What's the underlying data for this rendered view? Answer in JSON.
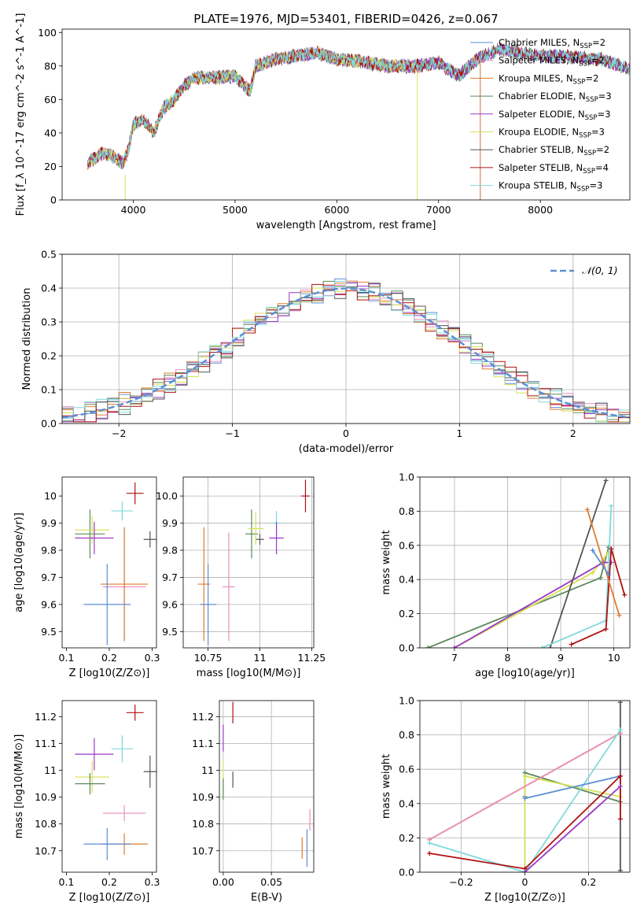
{
  "figure": {
    "title": "PLATE=1976, MJD=53401, FIBERID=0426, z=0.067"
  },
  "colors": {
    "Chabrier MILES": "#5b8fd6",
    "Salpeter MILES": "#e88fbf",
    "Kroupa MILES": "#e07b2e",
    "Chabrier ELODIE": "#5b8a5b",
    "Salpeter ELODIE": "#9b38c7",
    "Kroupa ELODIE": "#d6e055",
    "Chabrier STELIB": "#555555",
    "Salpeter STELIB": "#b01010",
    "Kroupa STELIB": "#7fd9dc"
  },
  "chart_data": [
    {
      "id": "spectrum",
      "type": "line",
      "xlabel": "wavelength [Angstrom, rest frame]",
      "ylabel": "Flux [f_λ 10^-17 erg cm^-2 s^-1 A^-1]",
      "xlim": [
        3300,
        8880
      ],
      "ylim": [
        0,
        102
      ],
      "xticks": [
        4000,
        5000,
        6000,
        7000,
        8000
      ],
      "yticks": [
        0,
        20,
        40,
        60,
        80,
        100
      ],
      "grid": false,
      "legend_position": "top-right",
      "legend": [
        "Chabrier MILES, N_SSP=2",
        "Salpeter MILES, N_SSP=2",
        "Kroupa MILES, N_SSP=2",
        "Chabrier ELODIE, N_SSP=3",
        "Salpeter ELODIE, N_SSP=3",
        "Kroupa ELODIE, N_SSP=3",
        "Chabrier STELIB, N_SSP=2",
        "Salpeter STELIB, N_SSP=4",
        "Kroupa STELIB, N_SSP=3"
      ],
      "continuum": {
        "x": [
          3550,
          3700,
          3800,
          3900,
          3950,
          4000,
          4100,
          4200,
          4300,
          4400,
          4500,
          4600,
          4800,
          5000,
          5150,
          5200,
          5400,
          5600,
          5800,
          5900,
          6000,
          6200,
          6500,
          6800,
          7000,
          7200,
          7400,
          7600,
          7800,
          8000,
          8200,
          8400,
          8600,
          8880
        ],
        "y": [
          22,
          28,
          26,
          22,
          30,
          45,
          48,
          40,
          55,
          60,
          68,
          73,
          73,
          74,
          65,
          80,
          84,
          86,
          88,
          86,
          84,
          83,
          80,
          80,
          82,
          74,
          85,
          90,
          88,
          86,
          86,
          85,
          84,
          78
        ]
      },
      "series_cutoffs": {
        "Kroupa ELODIE": 6790,
        "Kroupa MILES": 7410,
        "Salpeter MILES": 7410,
        "Chabrier MILES": 7410
      }
    },
    {
      "id": "residuals",
      "type": "histogram",
      "xlabel": "(data-model)/error",
      "ylabel": "Normed distribution",
      "xlim": [
        -2.5,
        2.5
      ],
      "ylim": [
        0,
        0.5
      ],
      "xticks": [
        -2,
        -1,
        0,
        1,
        2
      ],
      "yticks": [
        0.0,
        0.1,
        0.2,
        0.3,
        0.4,
        0.5
      ],
      "grid": true,
      "legend_position": "top-right",
      "legend": [
        "N(0,1)"
      ],
      "bins": {
        "start": -2.5,
        "width": 0.1,
        "count": 50
      }
    },
    {
      "id": "age_vs_Z",
      "type": "errorbar",
      "xlabel": "Z [log10(Z/Z⊙)]",
      "ylabel": "age [log10(age/yr)]",
      "xlim": [
        0.09,
        0.31
      ],
      "ylim": [
        9.44,
        10.07
      ],
      "xticks": [
        0.1,
        0.2,
        0.3
      ],
      "yticks": [
        9.5,
        9.6,
        9.7,
        9.8,
        9.9,
        10.0
      ],
      "grid": false,
      "points": [
        {
          "s": "Salpeter STELIB",
          "x": 0.26,
          "y": 10.01,
          "xe": 0.02,
          "ye": 0.04
        },
        {
          "s": "Kroupa STELIB",
          "x": 0.23,
          "y": 9.945,
          "xe": 0.025,
          "ye": 0.035
        },
        {
          "s": "Chabrier STELIB",
          "x": 0.295,
          "y": 9.84,
          "xe": 0.015,
          "ye": 0.03
        },
        {
          "s": "Chabrier ELODIE",
          "x": 0.155,
          "y": 9.86,
          "xe": 0.035,
          "ye": 0.09
        },
        {
          "s": "Kroupa ELODIE",
          "x": 0.16,
          "y": 9.875,
          "xe": 0.04,
          "ye": 0.05
        },
        {
          "s": "Salpeter ELODIE",
          "x": 0.165,
          "y": 9.845,
          "xe": 0.045,
          "ye": 0.06
        },
        {
          "s": "Salpeter MILES",
          "x": 0.235,
          "y": 9.665,
          "xe": 0.05,
          "ye": 0.2
        },
        {
          "s": "Kroupa MILES",
          "x": 0.235,
          "y": 9.675,
          "xe": 0.055,
          "ye": 0.21
        },
        {
          "s": "Chabrier MILES",
          "x": 0.195,
          "y": 9.6,
          "xe": 0.055,
          "ye": 0.15
        }
      ]
    },
    {
      "id": "age_vs_mass",
      "type": "errorbar",
      "xlabel": "mass [log10(M/M⊙)]",
      "ylabel": "",
      "xlim": [
        10.63,
        11.26
      ],
      "ylim": [
        9.44,
        10.07
      ],
      "xticks": [
        10.75,
        11.0,
        11.25
      ],
      "ytick_labels": [
        "9.5",
        "9.6",
        "9.7",
        "9.8",
        "9.9",
        "10.0"
      ],
      "yticks": [
        9.5,
        9.6,
        9.7,
        9.8,
        9.9,
        10.0
      ],
      "grid": true,
      "points": [
        {
          "s": "Salpeter STELIB",
          "x": 11.22,
          "y": 10.0,
          "xe": 0.02,
          "ye": 0.06
        },
        {
          "s": "Kroupa STELIB",
          "x": 11.08,
          "y": 9.9,
          "xe": 0.03,
          "ye": 0.045
        },
        {
          "s": "Chabrier STELIB",
          "x": 11.0,
          "y": 9.84,
          "xe": 0.02,
          "ye": 0.02
        },
        {
          "s": "Chabrier ELODIE",
          "x": 10.96,
          "y": 9.86,
          "xe": 0.03,
          "ye": 0.09
        },
        {
          "s": "Kroupa ELODIE",
          "x": 10.98,
          "y": 9.88,
          "xe": 0.04,
          "ye": 0.06
        },
        {
          "s": "Salpeter ELODIE",
          "x": 11.08,
          "y": 9.845,
          "xe": 0.035,
          "ye": 0.06
        },
        {
          "s": "Salpeter MILES",
          "x": 10.85,
          "y": 9.665,
          "xe": 0.03,
          "ye": 0.2
        },
        {
          "s": "Kroupa MILES",
          "x": 10.73,
          "y": 9.675,
          "xe": 0.03,
          "ye": 0.21
        },
        {
          "s": "Chabrier MILES",
          "x": 10.75,
          "y": 9.6,
          "xe": 0.04,
          "ye": 0.15
        }
      ]
    },
    {
      "id": "weight_vs_age",
      "type": "line",
      "xlabel": "age [log10(age/yr)]",
      "ylabel": "mass weight",
      "xlim": [
        6.35,
        10.3
      ],
      "ylim": [
        0,
        1
      ],
      "xticks": [
        7,
        8,
        9,
        10
      ],
      "yticks": [
        0.0,
        0.2,
        0.4,
        0.6,
        0.8,
        1.0
      ],
      "grid": true,
      "series": [
        {
          "s": "Chabrier ELODIE",
          "points": [
            [
              6.5,
              0.0
            ],
            [
              9.75,
              0.41
            ],
            [
              9.9,
              0.59
            ]
          ]
        },
        {
          "s": "Kroupa ELODIE",
          "points": [
            [
              7.0,
              0.0
            ],
            [
              9.6,
              0.44
            ],
            [
              9.9,
              0.56
            ]
          ]
        },
        {
          "s": "Salpeter ELODIE",
          "points": [
            [
              7.0,
              0.0
            ],
            [
              9.8,
              0.5
            ],
            [
              9.95,
              0.5
            ]
          ]
        },
        {
          "s": "Chabrier STELIB",
          "points": [
            [
              8.8,
              0.0
            ],
            [
              9.85,
              0.98
            ]
          ]
        },
        {
          "s": "Kroupa STELIB",
          "points": [
            [
              8.65,
              0.0
            ],
            [
              9.85,
              0.16
            ],
            [
              9.95,
              0.83
            ]
          ]
        },
        {
          "s": "Salpeter STELIB",
          "points": [
            [
              9.2,
              0.02
            ],
            [
              9.85,
              0.11
            ],
            [
              9.95,
              0.58
            ],
            [
              10.2,
              0.31
            ]
          ]
        },
        {
          "s": "Kroupa MILES",
          "points": [
            [
              9.5,
              0.81
            ],
            [
              10.1,
              0.19
            ]
          ]
        },
        {
          "s": "Chabrier MILES",
          "points": [
            [
              9.6,
              0.57
            ],
            [
              9.9,
              0.43
            ]
          ]
        }
      ]
    },
    {
      "id": "mass_vs_Z",
      "type": "errorbar",
      "xlabel": "Z [log10(Z/Z⊙)]",
      "ylabel": "mass [log10(M/M⊙)]",
      "xlim": [
        0.09,
        0.31
      ],
      "ylim": [
        10.62,
        11.26
      ],
      "xticks": [
        0.1,
        0.2,
        0.3
      ],
      "yticks": [
        10.7,
        10.8,
        10.9,
        11.0,
        11.1,
        11.2
      ],
      "grid": false,
      "points": [
        {
          "s": "Salpeter STELIB",
          "x": 0.26,
          "y": 11.215,
          "xe": 0.02,
          "ye": 0.03
        },
        {
          "s": "Kroupa STELIB",
          "x": 0.23,
          "y": 11.08,
          "xe": 0.025,
          "ye": 0.05
        },
        {
          "s": "Salpeter ELODIE",
          "x": 0.165,
          "y": 11.06,
          "xe": 0.045,
          "ye": 0.06
        },
        {
          "s": "Chabrier STELIB",
          "x": 0.295,
          "y": 10.995,
          "xe": 0.015,
          "ye": 0.06
        },
        {
          "s": "Kroupa ELODIE",
          "x": 0.16,
          "y": 10.975,
          "xe": 0.04,
          "ye": 0.06
        },
        {
          "s": "Chabrier ELODIE",
          "x": 0.155,
          "y": 10.95,
          "xe": 0.035,
          "ye": 0.04
        },
        {
          "s": "Salpeter MILES",
          "x": 0.235,
          "y": 10.84,
          "xe": 0.05,
          "ye": 0.03
        },
        {
          "s": "Kroupa MILES",
          "x": 0.235,
          "y": 10.725,
          "xe": 0.055,
          "ye": 0.04
        },
        {
          "s": "Chabrier MILES",
          "x": 0.195,
          "y": 10.725,
          "xe": 0.055,
          "ye": 0.06
        }
      ]
    },
    {
      "id": "mass_vs_ebv",
      "type": "errorbar",
      "xlabel": "E(B-V)",
      "ylabel": "",
      "xlim": [
        -0.004,
        0.094
      ],
      "ylim": [
        10.62,
        11.26
      ],
      "xticks": [
        0.0,
        0.05
      ],
      "xtick_labels": [
        "0.00",
        "0.05"
      ],
      "yticks": [
        10.7,
        10.8,
        10.9,
        11.0,
        11.1,
        11.2
      ],
      "grid": true,
      "points": [
        {
          "s": "Salpeter STELIB",
          "x": 0.01,
          "y": 11.215,
          "xe": 0,
          "ye": 0.04
        },
        {
          "s": "Salpeter ELODIE",
          "x": 0.0,
          "y": 11.12,
          "xe": 0,
          "ye": 0.05
        },
        {
          "s": "Kroupa ELODIE",
          "x": 0.0,
          "y": 10.98,
          "xe": 0,
          "ye": 0.06
        },
        {
          "s": "Chabrier STELIB",
          "x": 0.01,
          "y": 10.965,
          "xe": 0,
          "ye": 0.03
        },
        {
          "s": "Chabrier ELODIE",
          "x": 0.0,
          "y": 10.93,
          "xe": 0,
          "ye": 0.04
        },
        {
          "s": "Salpeter MILES",
          "x": 0.09,
          "y": 10.815,
          "xe": 0,
          "ye": 0.04
        },
        {
          "s": "Chabrier MILES",
          "x": 0.087,
          "y": 10.71,
          "xe": 0,
          "ye": 0.07
        },
        {
          "s": "Kroupa MILES",
          "x": 0.082,
          "y": 10.71,
          "xe": 0,
          "ye": 0.04
        }
      ]
    },
    {
      "id": "weight_vs_Z",
      "type": "line",
      "xlabel": "Z [log10(Z/Z⊙)]",
      "ylabel": "mass weight",
      "xlim": [
        -0.33,
        0.33
      ],
      "ylim": [
        0,
        1
      ],
      "xticks": [
        -0.2,
        0.0,
        0.2
      ],
      "yticks": [
        0.0,
        0.2,
        0.4,
        0.6,
        0.8,
        1.0
      ],
      "grid": true,
      "series": [
        {
          "s": "Chabrier STELIB",
          "points": [
            [
              0.3,
              0.01
            ],
            [
              0.3,
              0.99
            ]
          ]
        },
        {
          "s": "Chabrier ELODIE",
          "points": [
            [
              0.0,
              0.44
            ],
            [
              0.0,
              0.58
            ],
            [
              0.3,
              0.41
            ]
          ]
        },
        {
          "s": "Kroupa ELODIE",
          "points": [
            [
              0.0,
              0.0
            ],
            [
              0.0,
              0.56
            ],
            [
              0.3,
              0.44
            ]
          ]
        },
        {
          "s": "Kroupa MILES",
          "points": [
            [
              -0.3,
              0.19
            ],
            [
              0.3,
              0.81
            ]
          ]
        },
        {
          "s": "Salpeter MILES",
          "points": [
            [
              -0.3,
              0.19
            ],
            [
              0.3,
              0.81
            ]
          ]
        },
        {
          "s": "Kroupa STELIB",
          "points": [
            [
              -0.3,
              0.17
            ],
            [
              0.0,
              0.0
            ],
            [
              0.3,
              0.83
            ]
          ]
        },
        {
          "s": "Chabrier MILES",
          "points": [
            [
              0.0,
              0.43
            ],
            [
              0.3,
              0.56
            ]
          ]
        },
        {
          "s": "Salpeter STELIB",
          "points": [
            [
              -0.3,
              0.11
            ],
            [
              0.0,
              0.02
            ],
            [
              0.3,
              0.56
            ],
            [
              0.3,
              0.31
            ]
          ]
        },
        {
          "s": "Salpeter ELODIE",
          "points": [
            [
              0.0,
              0.0
            ],
            [
              0.3,
              0.5
            ]
          ]
        }
      ]
    }
  ]
}
